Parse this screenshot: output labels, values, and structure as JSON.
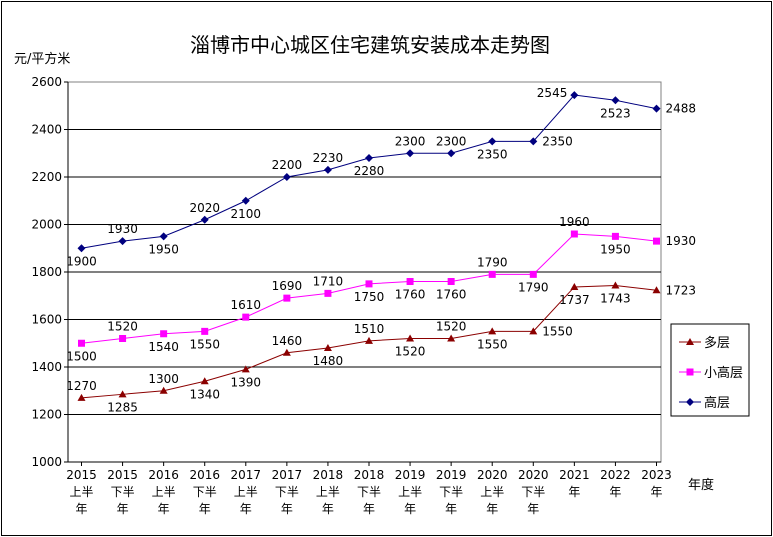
{
  "chart_data": {
    "type": "line",
    "title": "淄博市中心城区住宅建筑安装成本走势图",
    "ylabel": "元/平方米",
    "xlabel": "年度",
    "ylim": [
      1000,
      2600
    ],
    "yticks": [
      1000,
      1200,
      1400,
      1600,
      1800,
      2000,
      2200,
      2400,
      2600
    ],
    "grid": true,
    "legend_position": "right",
    "categories": [
      [
        "2015",
        "上半",
        "年"
      ],
      [
        "2015",
        "下半",
        "年"
      ],
      [
        "2016",
        "上半",
        "年"
      ],
      [
        "2016",
        "下半",
        "年"
      ],
      [
        "2017",
        "上半",
        "年"
      ],
      [
        "2017",
        "下半",
        "年"
      ],
      [
        "2018",
        "上半",
        "年"
      ],
      [
        "2018",
        "下半",
        "年"
      ],
      [
        "2019",
        "上半",
        "年"
      ],
      [
        "2019",
        "下半",
        "年"
      ],
      [
        "2020",
        "上半",
        "年"
      ],
      [
        "2020",
        "下半",
        "年"
      ],
      [
        "2021",
        "年"
      ],
      [
        "2022",
        "年"
      ],
      [
        "2023",
        "年"
      ]
    ],
    "series": [
      {
        "name": "多层",
        "color": "#8b0000",
        "marker": "triangle",
        "values": [
          1270,
          1285,
          1300,
          1340,
          1390,
          1460,
          1480,
          1510,
          1520,
          1520,
          1550,
          1550,
          1737,
          1743,
          1723
        ],
        "label_pos": [
          "above",
          "below",
          "above",
          "below",
          "below",
          "above",
          "below",
          "above",
          "below",
          "above",
          "below",
          "right",
          "below",
          "below",
          "right"
        ]
      },
      {
        "name": "小高层",
        "color": "#ff00ff",
        "marker": "square",
        "values": [
          1500,
          1520,
          1540,
          1550,
          1610,
          1690,
          1710,
          1750,
          1760,
          1760,
          1790,
          1790,
          1960,
          1950,
          1930
        ],
        "label_pos": [
          "below",
          "above",
          "below",
          "below",
          "above",
          "above",
          "above",
          "below",
          "below",
          "below",
          "above",
          "below",
          "above",
          "below",
          "right"
        ]
      },
      {
        "name": "高层",
        "color": "#00007f",
        "marker": "diamond",
        "values": [
          1900,
          1930,
          1950,
          2020,
          2100,
          2200,
          2230,
          2280,
          2300,
          2300,
          2350,
          2350,
          2545,
          2523,
          2488
        ],
        "label_pos": [
          "below",
          "above",
          "below",
          "above",
          "below",
          "above",
          "above",
          "below",
          "above",
          "above",
          "below",
          "right",
          "left",
          "below",
          "right"
        ]
      }
    ],
    "legend_order": [
      0,
      1,
      2
    ]
  }
}
